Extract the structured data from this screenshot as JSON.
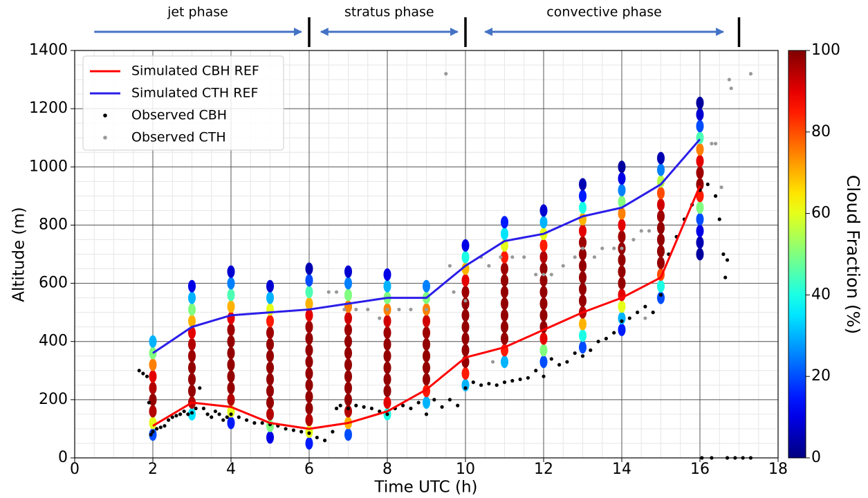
{
  "chart_data": {
    "type": "profile-scatter",
    "xlabel": "Time UTC (h)",
    "ylabel": "Altitude (m)",
    "colorbar_label": "Cloud Fraction (%)",
    "colormap": "jet",
    "clim": [
      0,
      100
    ],
    "colorbar_ticks": [
      0,
      20,
      40,
      60,
      80,
      100
    ],
    "xlim": [
      0,
      18
    ],
    "ylim": [
      0,
      1400
    ],
    "xticks": [
      0,
      2,
      4,
      6,
      8,
      10,
      12,
      14,
      16,
      18
    ],
    "yticks": [
      0,
      200,
      400,
      600,
      800,
      1000,
      1200,
      1400
    ],
    "grid": true,
    "minor_grid": true,
    "xminor": 0.5,
    "yminor": 50,
    "legend": "upper left",
    "phases": [
      {
        "label": "jet phase",
        "start": 0.5,
        "end": 5.8
      },
      {
        "label": "stratus phase",
        "start": 6.3,
        "end": 9.8
      },
      {
        "label": "convective phase",
        "start": 10.5,
        "end": 16.6
      }
    ],
    "phase_boundaries": [
      6,
      10,
      17
    ],
    "x": [
      2,
      3,
      4,
      5,
      6,
      7,
      8,
      9,
      10,
      11,
      12,
      13,
      14,
      15,
      16
    ],
    "series": [
      {
        "name": "Simulated CBH REF",
        "color": "#ff0000",
        "values": [
          110,
          190,
          175,
          120,
          100,
          120,
          160,
          235,
          345,
          380,
          440,
          500,
          550,
          620,
          935
        ]
      },
      {
        "name": "Simulated CTH REF",
        "color": "#2a1de8",
        "values": [
          360,
          450,
          490,
          500,
          510,
          530,
          550,
          550,
          660,
          745,
          770,
          830,
          860,
          940,
          1095
        ]
      }
    ],
    "cloud_profiles": [
      {
        "x": 2,
        "altitude": [
          80,
          120,
          160,
          200,
          240,
          280,
          320,
          360,
          400
        ],
        "cloud_fraction": [
          20,
          60,
          95,
          98,
          95,
          90,
          75,
          50,
          30
        ]
      },
      {
        "x": 3,
        "altitude": [
          150,
          190,
          230,
          270,
          310,
          350,
          390,
          430,
          470,
          510,
          550,
          590
        ],
        "cloud_fraction": [
          35,
          95,
          98,
          98,
          98,
          97,
          95,
          90,
          70,
          50,
          30,
          10
        ]
      },
      {
        "x": 4,
        "altitude": [
          120,
          160,
          200,
          240,
          280,
          320,
          360,
          400,
          440,
          480,
          520,
          560,
          600,
          640
        ],
        "cloud_fraction": [
          15,
          60,
          95,
          98,
          98,
          98,
          98,
          98,
          97,
          90,
          70,
          45,
          25,
          8
        ]
      },
      {
        "x": 5,
        "altitude": [
          70,
          110,
          150,
          190,
          230,
          270,
          310,
          350,
          390,
          430,
          470,
          510,
          550,
          590
        ],
        "cloud_fraction": [
          10,
          50,
          95,
          98,
          98,
          98,
          98,
          98,
          98,
          97,
          85,
          60,
          30,
          8
        ]
      },
      {
        "x": 6,
        "altitude": [
          50,
          90,
          130,
          170,
          210,
          250,
          290,
          330,
          370,
          410,
          450,
          490,
          530,
          570,
          610,
          650
        ],
        "cloud_fraction": [
          15,
          60,
          95,
          98,
          98,
          98,
          98,
          98,
          98,
          98,
          97,
          90,
          70,
          45,
          20,
          5
        ]
      },
      {
        "x": 7,
        "altitude": [
          80,
          120,
          160,
          200,
          240,
          280,
          320,
          360,
          400,
          440,
          480,
          520,
          560,
          600,
          640
        ],
        "cloud_fraction": [
          20,
          70,
          95,
          98,
          98,
          98,
          98,
          98,
          98,
          97,
          92,
          75,
          50,
          25,
          8
        ]
      },
      {
        "x": 8,
        "altitude": [
          150,
          190,
          230,
          270,
          310,
          350,
          390,
          430,
          470,
          510,
          550,
          590,
          630
        ],
        "cloud_fraction": [
          40,
          90,
          98,
          98,
          98,
          98,
          98,
          97,
          92,
          75,
          50,
          30,
          10
        ]
      },
      {
        "x": 9,
        "altitude": [
          190,
          230,
          270,
          310,
          350,
          390,
          430,
          470,
          510,
          550,
          590
        ],
        "cloud_fraction": [
          30,
          85,
          98,
          98,
          98,
          98,
          97,
          92,
          75,
          50,
          25
        ]
      },
      {
        "x": 10,
        "altitude": [
          250,
          290,
          330,
          370,
          410,
          450,
          490,
          530,
          570,
          610,
          650,
          690,
          730
        ],
        "cloud_fraction": [
          30,
          85,
          98,
          98,
          98,
          98,
          98,
          98,
          97,
          90,
          70,
          40,
          10
        ]
      },
      {
        "x": 11,
        "altitude": [
          330,
          370,
          410,
          450,
          490,
          530,
          570,
          610,
          650,
          690,
          730,
          770,
          810
        ],
        "cloud_fraction": [
          30,
          85,
          98,
          98,
          98,
          98,
          98,
          98,
          97,
          85,
          60,
          35,
          15
        ]
      },
      {
        "x": 12,
        "altitude": [
          330,
          370,
          410,
          450,
          490,
          530,
          570,
          610,
          650,
          690,
          730,
          770,
          810,
          850
        ],
        "cloud_fraction": [
          20,
          50,
          90,
          98,
          98,
          98,
          98,
          98,
          98,
          95,
          85,
          60,
          30,
          8
        ]
      },
      {
        "x": 13,
        "altitude": [
          380,
          420,
          460,
          500,
          540,
          580,
          620,
          660,
          700,
          740,
          780,
          820,
          860,
          900,
          940
        ],
        "cloud_fraction": [
          20,
          40,
          70,
          95,
          98,
          98,
          98,
          98,
          98,
          97,
          90,
          70,
          40,
          15,
          5
        ]
      },
      {
        "x": 14,
        "altitude": [
          440,
          480,
          520,
          560,
          600,
          640,
          680,
          720,
          760,
          800,
          840,
          880,
          920,
          960,
          1000
        ],
        "cloud_fraction": [
          15,
          30,
          60,
          90,
          98,
          98,
          98,
          98,
          97,
          90,
          75,
          50,
          25,
          10,
          3
        ]
      },
      {
        "x": 15,
        "altitude": [
          550,
          590,
          630,
          670,
          710,
          750,
          790,
          830,
          870,
          910,
          950,
          990,
          1030
        ],
        "cloud_fraction": [
          20,
          40,
          80,
          98,
          98,
          98,
          98,
          97,
          92,
          80,
          55,
          25,
          5
        ]
      },
      {
        "x": 16,
        "altitude": [
          700,
          740,
          780,
          820,
          860,
          900,
          940,
          980,
          1020,
          1060,
          1100,
          1140,
          1180,
          1220
        ],
        "cloud_fraction": [
          3,
          5,
          10,
          20,
          50,
          85,
          98,
          97,
          90,
          75,
          45,
          20,
          8,
          3
        ]
      }
    ],
    "scatter_series": [
      {
        "name": "Observed CBH",
        "color": "#000000",
        "points": [
          [
            1.65,
            300
          ],
          [
            1.75,
            290
          ],
          [
            1.85,
            280
          ],
          [
            1.9,
            190
          ],
          [
            1.95,
            80
          ],
          [
            2.0,
            90
          ],
          [
            2.1,
            100
          ],
          [
            2.2,
            105
          ],
          [
            2.3,
            110
          ],
          [
            2.4,
            130
          ],
          [
            2.5,
            140
          ],
          [
            2.6,
            145
          ],
          [
            2.7,
            150
          ],
          [
            2.8,
            160
          ],
          [
            2.9,
            150
          ],
          [
            3.0,
            155
          ],
          [
            3.1,
            170
          ],
          [
            3.2,
            240
          ],
          [
            3.3,
            170
          ],
          [
            3.4,
            150
          ],
          [
            3.5,
            140
          ],
          [
            3.6,
            160
          ],
          [
            3.7,
            150
          ],
          [
            3.8,
            130
          ],
          [
            3.9,
            140
          ],
          [
            4.0,
            150
          ],
          [
            4.2,
            140
          ],
          [
            4.4,
            130
          ],
          [
            4.6,
            120
          ],
          [
            4.8,
            120
          ],
          [
            5.0,
            115
          ],
          [
            5.2,
            110
          ],
          [
            5.4,
            100
          ],
          [
            5.6,
            95
          ],
          [
            5.8,
            90
          ],
          [
            6.0,
            85
          ],
          [
            6.2,
            70
          ],
          [
            6.4,
            60
          ],
          [
            6.6,
            90
          ],
          [
            6.7,
            170
          ],
          [
            6.8,
            180
          ],
          [
            7.0,
            170
          ],
          [
            7.2,
            180
          ],
          [
            7.4,
            175
          ],
          [
            7.6,
            170
          ],
          [
            7.8,
            160
          ],
          [
            8.0,
            150
          ],
          [
            8.2,
            170
          ],
          [
            8.4,
            180
          ],
          [
            8.6,
            170
          ],
          [
            8.8,
            190
          ],
          [
            9.0,
            150
          ],
          [
            9.2,
            200
          ],
          [
            9.4,
            175
          ],
          [
            9.6,
            200
          ],
          [
            9.8,
            180
          ],
          [
            10.0,
            240
          ],
          [
            10.2,
            260
          ],
          [
            10.4,
            250
          ],
          [
            10.6,
            255
          ],
          [
            10.8,
            250
          ],
          [
            11.0,
            260
          ],
          [
            11.2,
            265
          ],
          [
            11.4,
            270
          ],
          [
            11.6,
            275
          ],
          [
            11.8,
            300
          ],
          [
            12.0,
            280
          ],
          [
            12.2,
            340
          ],
          [
            12.4,
            320
          ],
          [
            12.6,
            330
          ],
          [
            12.8,
            360
          ],
          [
            13.0,
            350
          ],
          [
            13.2,
            370
          ],
          [
            13.4,
            400
          ],
          [
            13.6,
            410
          ],
          [
            13.8,
            430
          ],
          [
            14.0,
            470
          ],
          [
            14.2,
            480
          ],
          [
            14.4,
            500
          ],
          [
            14.6,
            520
          ],
          [
            14.8,
            500
          ],
          [
            15.0,
            560
          ],
          [
            15.2,
            700
          ],
          [
            15.4,
            760
          ],
          [
            15.6,
            820
          ],
          [
            15.8,
            870
          ],
          [
            16.0,
            920
          ],
          [
            16.2,
            940
          ],
          [
            16.4,
            900
          ],
          [
            16.5,
            820
          ],
          [
            16.6,
            700
          ],
          [
            16.65,
            620
          ],
          [
            16.7,
            680
          ],
          [
            16.05,
            0
          ],
          [
            16.3,
            0
          ],
          [
            16.7,
            0
          ],
          [
            16.9,
            0
          ],
          [
            17.1,
            0
          ],
          [
            17.3,
            0
          ]
        ]
      },
      {
        "name": "Observed CTH",
        "color": "#999999",
        "points": [
          [
            6.5,
            570
          ],
          [
            6.7,
            570
          ],
          [
            6.9,
            510
          ],
          [
            7.2,
            510
          ],
          [
            7.5,
            510
          ],
          [
            7.8,
            480
          ],
          [
            8.0,
            510
          ],
          [
            8.3,
            510
          ],
          [
            8.6,
            510
          ],
          [
            9.0,
            510
          ],
          [
            9.5,
            1320
          ],
          [
            9.6,
            660
          ],
          [
            9.7,
            570
          ],
          [
            10.0,
            540
          ],
          [
            10.4,
            690
          ],
          [
            10.6,
            660
          ],
          [
            10.7,
            330
          ],
          [
            10.9,
            690
          ],
          [
            11.2,
            690
          ],
          [
            11.5,
            690
          ],
          [
            11.8,
            630
          ],
          [
            12.0,
            630
          ],
          [
            12.2,
            630
          ],
          [
            12.5,
            660
          ],
          [
            12.8,
            690
          ],
          [
            13.0,
            720
          ],
          [
            13.3,
            690
          ],
          [
            13.5,
            720
          ],
          [
            13.8,
            720
          ],
          [
            14.0,
            720
          ],
          [
            14.3,
            750
          ],
          [
            14.5,
            780
          ],
          [
            14.6,
            480
          ],
          [
            14.7,
            780
          ],
          [
            16.3,
            1080
          ],
          [
            16.4,
            1080
          ],
          [
            16.55,
            930
          ],
          [
            16.75,
            1300
          ],
          [
            16.8,
            1270
          ],
          [
            17.3,
            1320
          ]
        ]
      }
    ]
  }
}
